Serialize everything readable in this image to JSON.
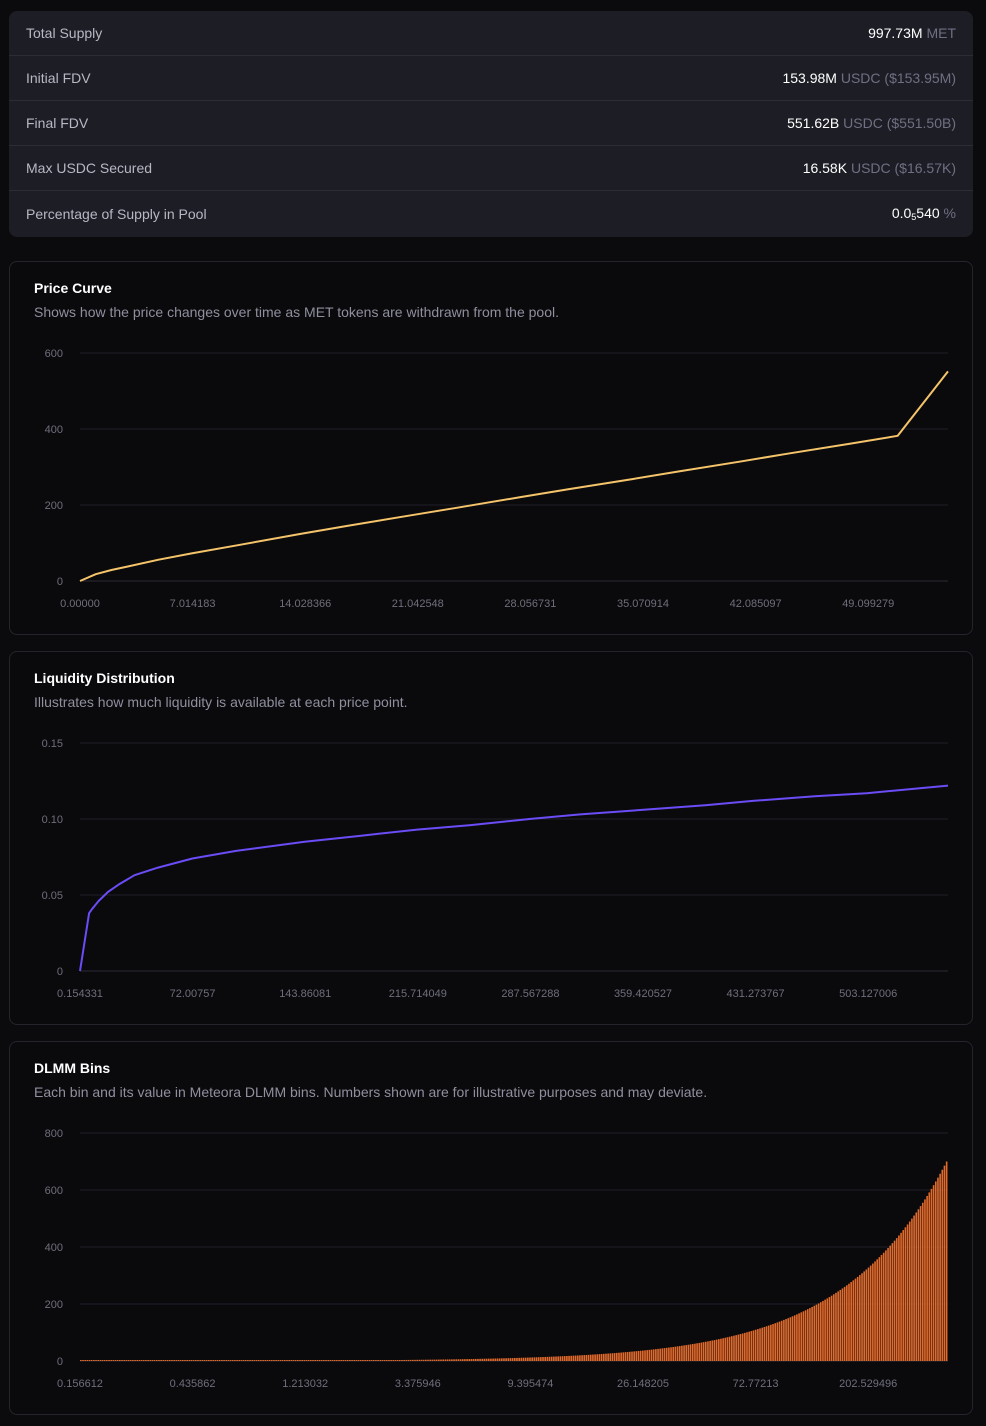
{
  "stats": [
    {
      "label": "Total Supply",
      "value": "997.73M",
      "unit": "MET",
      "sub": ""
    },
    {
      "label": "Initial FDV",
      "value": "153.98M",
      "unit": "USDC ($153.95M)",
      "sub": ""
    },
    {
      "label": "Final FDV",
      "value": "551.62B",
      "unit": "USDC ($551.50B)",
      "sub": ""
    },
    {
      "label": "Max USDC Secured",
      "value": "16.58K",
      "unit": "USDC ($16.57K)",
      "sub": ""
    },
    {
      "label": "Percentage of Supply in Pool",
      "value": "0.0",
      "sub": "5",
      "value_tail": "540",
      "unit": "%"
    }
  ],
  "colors": {
    "price": "#f5c46a",
    "liquidity": "#6b4cf6",
    "bins": "#e26a2c"
  },
  "chart_data": [
    {
      "type": "line",
      "title": "Price Curve",
      "subtitle": "Shows how the price changes over time as MET tokens are withdrawn from the pool.",
      "x_ticks": [
        "0.00000",
        "7.014183",
        "14.028366",
        "21.042548",
        "28.056731",
        "35.070914",
        "42.085097",
        "49.099279"
      ],
      "y_ticks": [
        "0",
        "200",
        "400",
        "600"
      ],
      "xlim": [
        0,
        55.2
      ],
      "ylim": [
        0,
        600
      ],
      "grid": true,
      "x": [
        0,
        1,
        2,
        3,
        5,
        7.014,
        10,
        14.028,
        17,
        21.043,
        24,
        28.057,
        31,
        35.071,
        38,
        42.085,
        45,
        49.099,
        52,
        55.2
      ],
      "y": [
        0,
        18,
        29,
        38,
        56,
        72,
        94,
        124,
        145,
        173,
        193,
        221,
        241,
        268,
        288,
        315,
        335,
        362,
        382,
        551.6
      ]
    },
    {
      "type": "line",
      "title": "Liquidity Distribution",
      "subtitle": "Illustrates how much liquidity is available at each price point.",
      "x_ticks": [
        "0.154331",
        "72.00757",
        "143.86081",
        "215.714049",
        "287.567288",
        "359.420527",
        "431.273767",
        "503.127006"
      ],
      "y_ticks": [
        "0",
        "0.05",
        "0.10",
        "0.15"
      ],
      "xlim": [
        0.154331,
        555.2
      ],
      "ylim": [
        0,
        0.15
      ],
      "grid": true,
      "x": [
        0.154331,
        6,
        8,
        12,
        18,
        25,
        35,
        50,
        72.00757,
        100,
        143.86081,
        180,
        215.714049,
        250,
        287.567288,
        320,
        359.420527,
        400,
        431.273767,
        470,
        503.127006,
        555.2
      ],
      "y": [
        0,
        0.038,
        0.041,
        0.046,
        0.052,
        0.057,
        0.063,
        0.068,
        0.074,
        0.079,
        0.085,
        0.089,
        0.093,
        0.096,
        0.1,
        0.103,
        0.106,
        0.109,
        0.112,
        0.115,
        0.117,
        0.122
      ]
    },
    {
      "type": "bar",
      "title": "DLMM Bins",
      "subtitle": "Each bin and its value in Meteora DLMM bins. Numbers shown are for illustrative purposes and may deviate.",
      "x_ticks": [
        "0.156612",
        "0.435862",
        "1.213032",
        "3.375946",
        "9.395474",
        "26.148205",
        "72.77213",
        "202.529496"
      ],
      "y_ticks": [
        "0",
        "200",
        "400",
        "600",
        "800"
      ],
      "xscale": "log",
      "xlim": [
        0.156612,
        560
      ],
      "ylim": [
        0,
        800
      ],
      "grid": true,
      "bin_count": 400,
      "bin_min_value": 0.156612,
      "bin_max_value": 700
    }
  ]
}
